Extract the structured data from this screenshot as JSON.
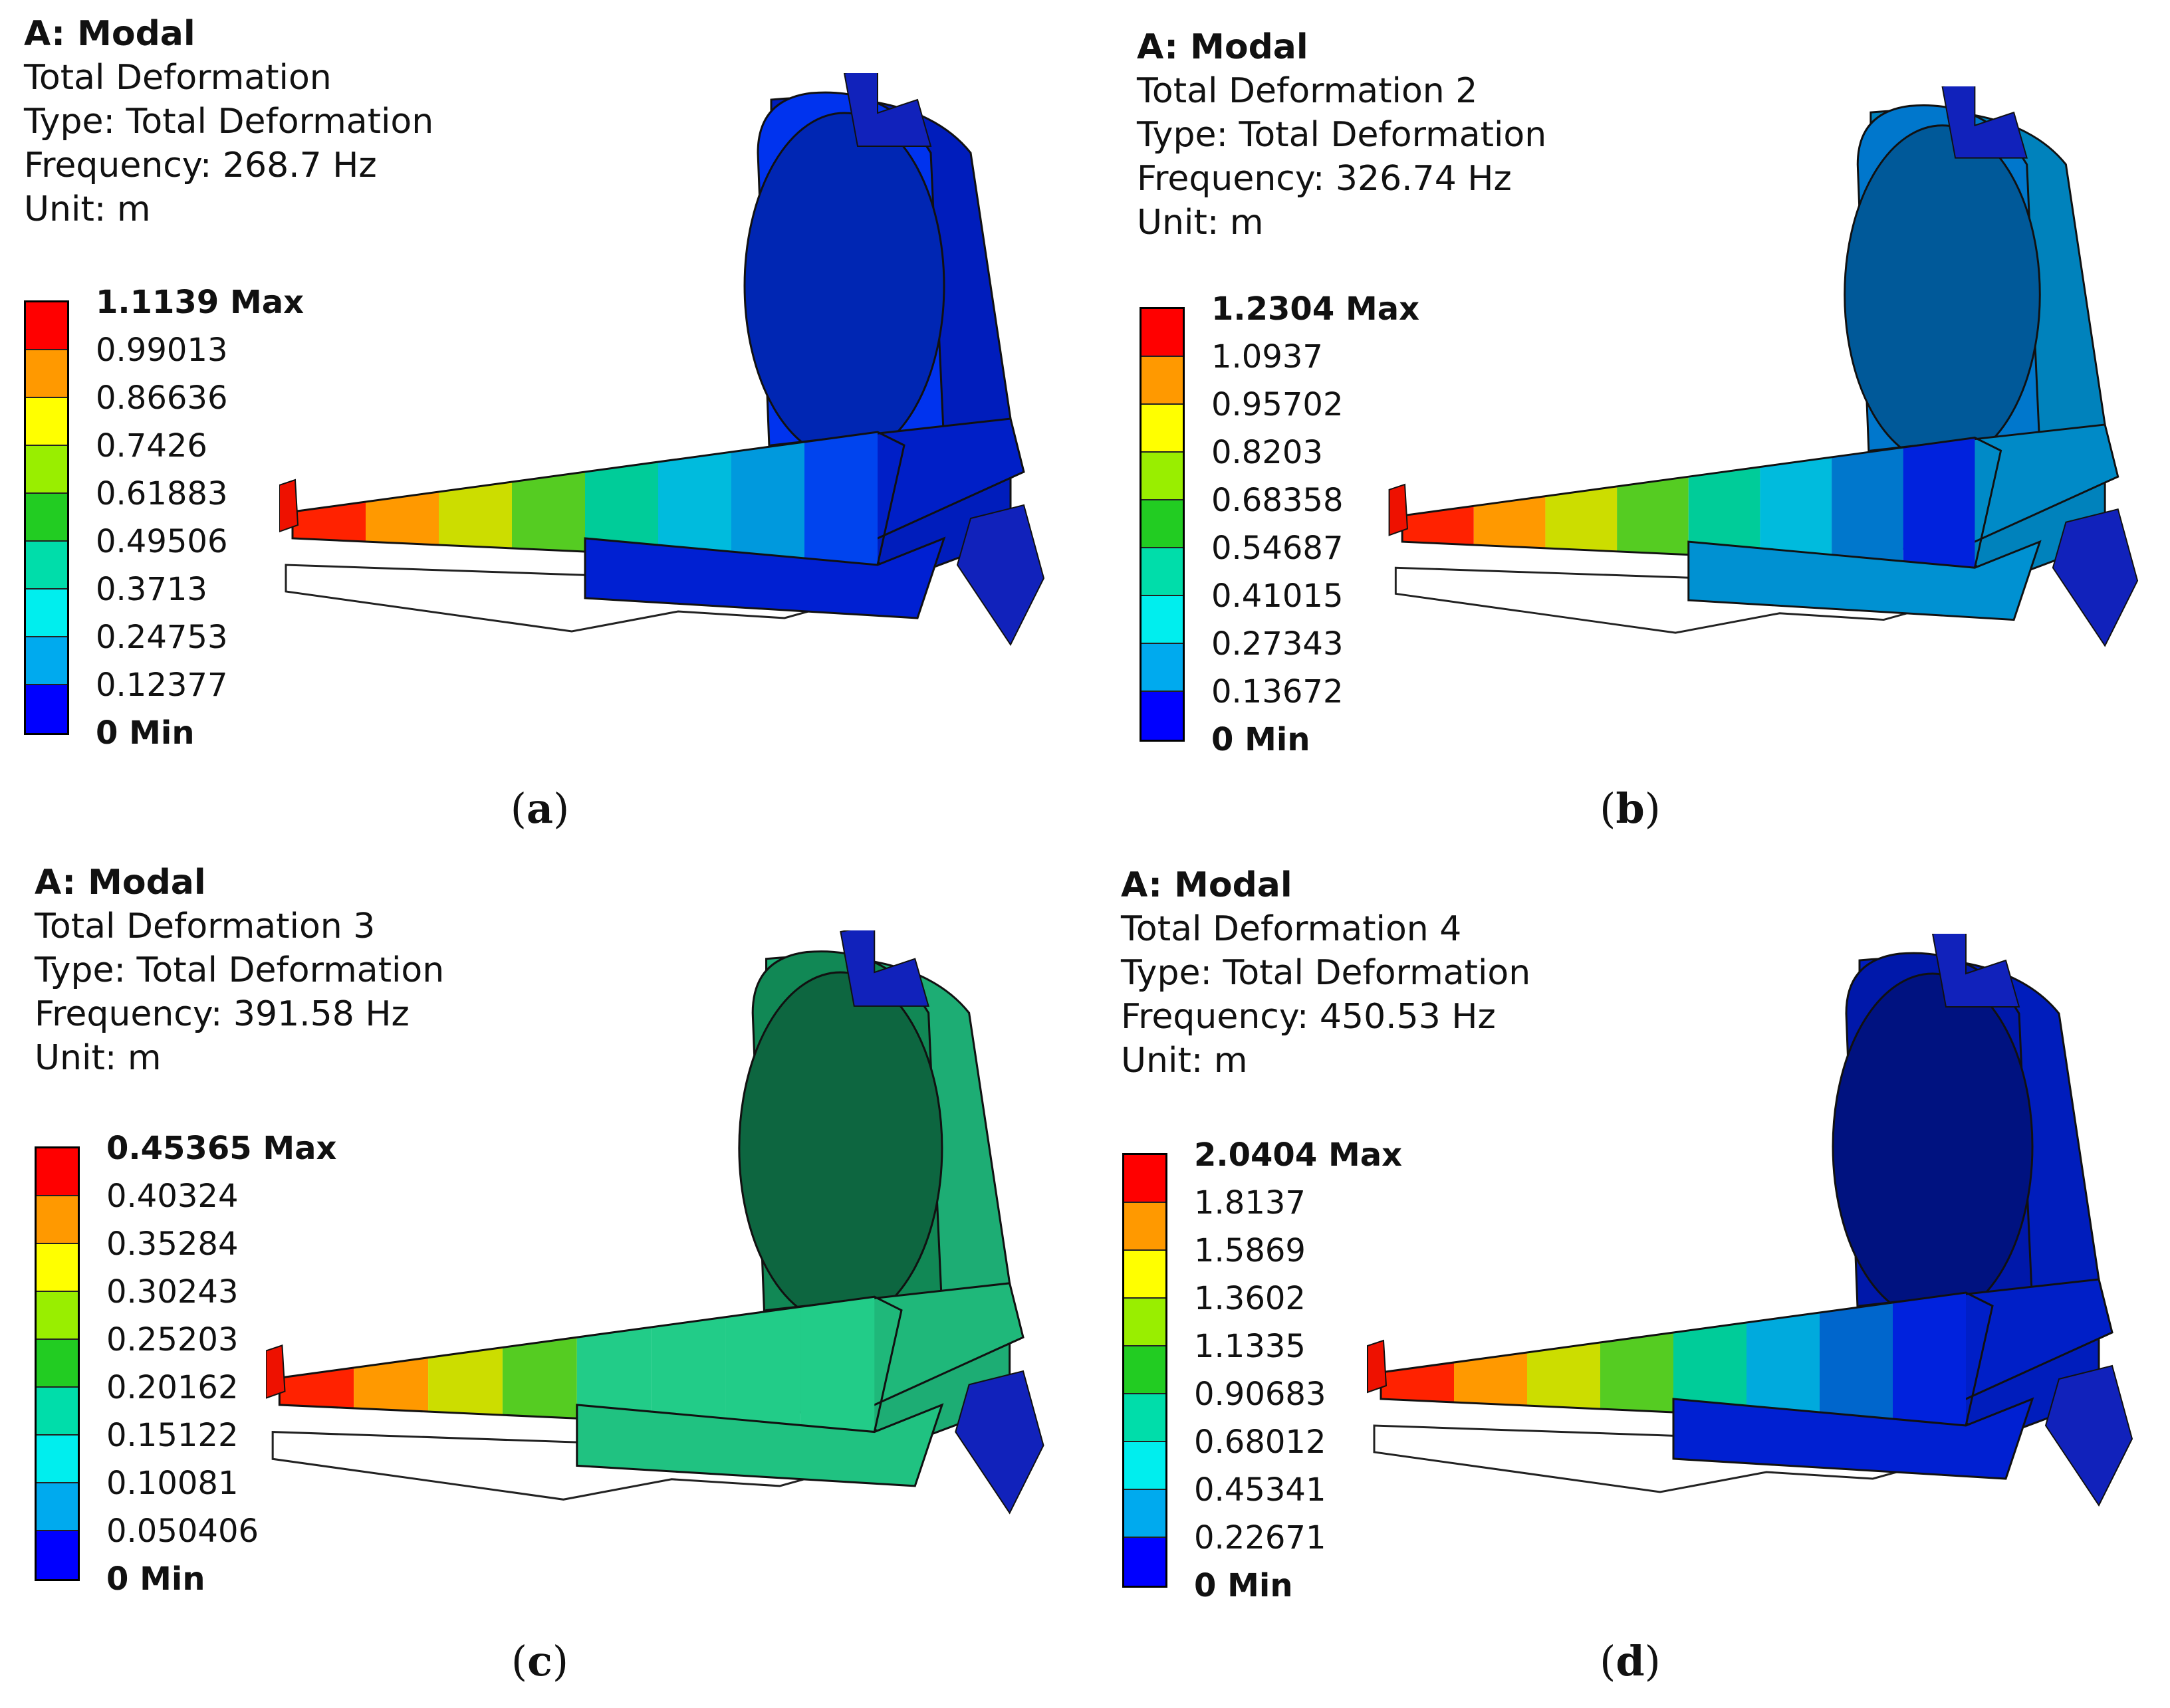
{
  "legend_colors": [
    "#ff0000",
    "#ff9900",
    "#ffff00",
    "#99ee00",
    "#22cc22",
    "#00ddaa",
    "#00eeee",
    "#00aaee",
    "#0000ff"
  ],
  "panels": [
    {
      "id": "a",
      "title": "A: Modal",
      "name": "Total Deformation",
      "type": "Type: Total Deformation",
      "frequency": "Frequency: 268.7 Hz",
      "unit": "Unit: m",
      "legend": [
        "1.1139 Max",
        "0.99013",
        "0.86636",
        "0.7426",
        "0.61883",
        "0.49506",
        "0.3713",
        "0.24753",
        "0.12377",
        "0 Min"
      ],
      "caption_letter": "a",
      "body_color": "#0022dd",
      "panel_color": "#0033ee",
      "tail_gradient": [
        "#ff2200",
        "#ff9900",
        "#ccdd00",
        "#55cc22",
        "#00cc99",
        "#00bbdd",
        "#0099dd",
        "#0044ee"
      ]
    },
    {
      "id": "b",
      "title": "A: Modal",
      "name": "Total Deformation 2",
      "type": "Type: Total Deformation",
      "frequency": "Frequency: 326.74 Hz",
      "unit": "Unit: m",
      "legend": [
        "1.2304 Max",
        "1.0937",
        "0.95702",
        "0.8203",
        "0.68358",
        "0.54687",
        "0.41015",
        "0.27343",
        "0.13672",
        "0 Min"
      ],
      "caption_letter": "b",
      "body_color": "#0099dd",
      "panel_color": "#0077cc",
      "tail_gradient": [
        "#ff2200",
        "#ff9900",
        "#ccdd00",
        "#55cc22",
        "#00cc99",
        "#00bbdd",
        "#0077cc",
        "#0022dd"
      ]
    },
    {
      "id": "c",
      "title": "A: Modal",
      "name": "Total Deformation 3",
      "type": "Type: Total Deformation",
      "frequency": "Frequency: 391.58 Hz",
      "unit": "Unit: m",
      "legend": [
        "0.45365 Max",
        "0.40324",
        "0.35284",
        "0.30243",
        "0.25203",
        "0.20162",
        "0.15122",
        "0.10081",
        "0.050406",
        "0 Min"
      ],
      "caption_letter": "c",
      "body_color": "#22cc88",
      "panel_color": "#118855",
      "tail_gradient": [
        "#ff2200",
        "#ff9900",
        "#ccdd00",
        "#55cc22",
        "#22cc88",
        "#22cc88",
        "#22cc88",
        "#22cc88"
      ]
    },
    {
      "id": "d",
      "title": "A: Modal",
      "name": "Total Deformation 4",
      "type": "Type: Total Deformation",
      "frequency": "Frequency: 450.53 Hz",
      "unit": "Unit: m",
      "legend": [
        "2.0404 Max",
        "1.8137",
        "1.5869",
        "1.3602",
        "1.1335",
        "0.90683",
        "0.68012",
        "0.45341",
        "0.22671",
        "0 Min"
      ],
      "caption_letter": "d",
      "body_color": "#0022dd",
      "panel_color": "#0018aa",
      "tail_gradient": [
        "#ff2200",
        "#ff9900",
        "#ccdd00",
        "#55cc22",
        "#00cc99",
        "#00aadd",
        "#0066cc",
        "#0022dd"
      ]
    }
  ]
}
